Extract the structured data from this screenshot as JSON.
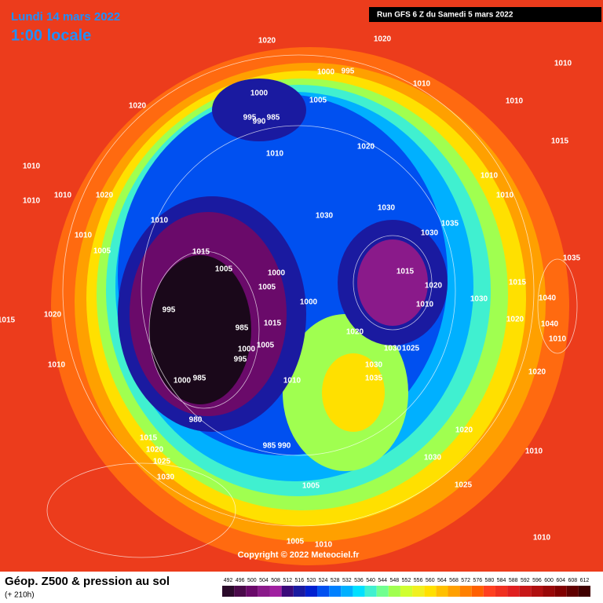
{
  "header": {
    "date": "Lundi 14 mars 2022",
    "time": "1:00 locale",
    "run": "Run GFS 6 Z du Samedi 5 mars 2022"
  },
  "footer": {
    "title": "Géop. Z500 & pression au sol",
    "lead": "(+ 210h)",
    "copyright": "Copyright © 2022 Meteociel.fr"
  },
  "colorbar": {
    "ticks": [
      492,
      496,
      500,
      504,
      508,
      512,
      516,
      520,
      524,
      528,
      532,
      536,
      540,
      544,
      548,
      552,
      556,
      560,
      564,
      568,
      572,
      576,
      580,
      584,
      588,
      592,
      596,
      600,
      604,
      608,
      612
    ],
    "colors": [
      "#2a0a2a",
      "#4a0a4a",
      "#6a0a6a",
      "#8a1a8a",
      "#a020a0",
      "#3a0a7a",
      "#1a1aa0",
      "#0020d0",
      "#0050f0",
      "#0080ff",
      "#00b0ff",
      "#00e0ff",
      "#40f0d0",
      "#70ff90",
      "#a0ff50",
      "#d0ff30",
      "#f0f020",
      "#ffe000",
      "#ffc000",
      "#ffa000",
      "#ff8000",
      "#ff6000",
      "#ff4020",
      "#f03020",
      "#e02020",
      "#c81818",
      "#b01010",
      "#980808",
      "#800000",
      "#600000",
      "#400000"
    ]
  },
  "isobar_labels": [
    1020,
    995,
    1000,
    1020,
    1010,
    1010,
    1010,
    1020,
    1000,
    1005,
    995,
    990,
    985,
    1010,
    1020,
    1010,
    1010,
    1010,
    1020,
    1010,
    1010,
    1015,
    1010,
    1030,
    1030,
    1035,
    1030,
    1010,
    1005,
    1015,
    1005,
    1000,
    1005,
    1015,
    1020,
    1010,
    1030,
    1015,
    1035,
    1040,
    1040,
    1020,
    1010,
    995,
    1000,
    1015,
    1020,
    985,
    1000,
    995,
    1005,
    1030,
    1025,
    1020,
    1015,
    1010,
    1030,
    1035,
    1010,
    1000,
    985,
    980,
    1020,
    1020,
    985,
    990,
    1030,
    1015,
    1020,
    1025,
    1030,
    1010,
    1005,
    1025,
    1005,
    1010,
    1010
  ]
}
